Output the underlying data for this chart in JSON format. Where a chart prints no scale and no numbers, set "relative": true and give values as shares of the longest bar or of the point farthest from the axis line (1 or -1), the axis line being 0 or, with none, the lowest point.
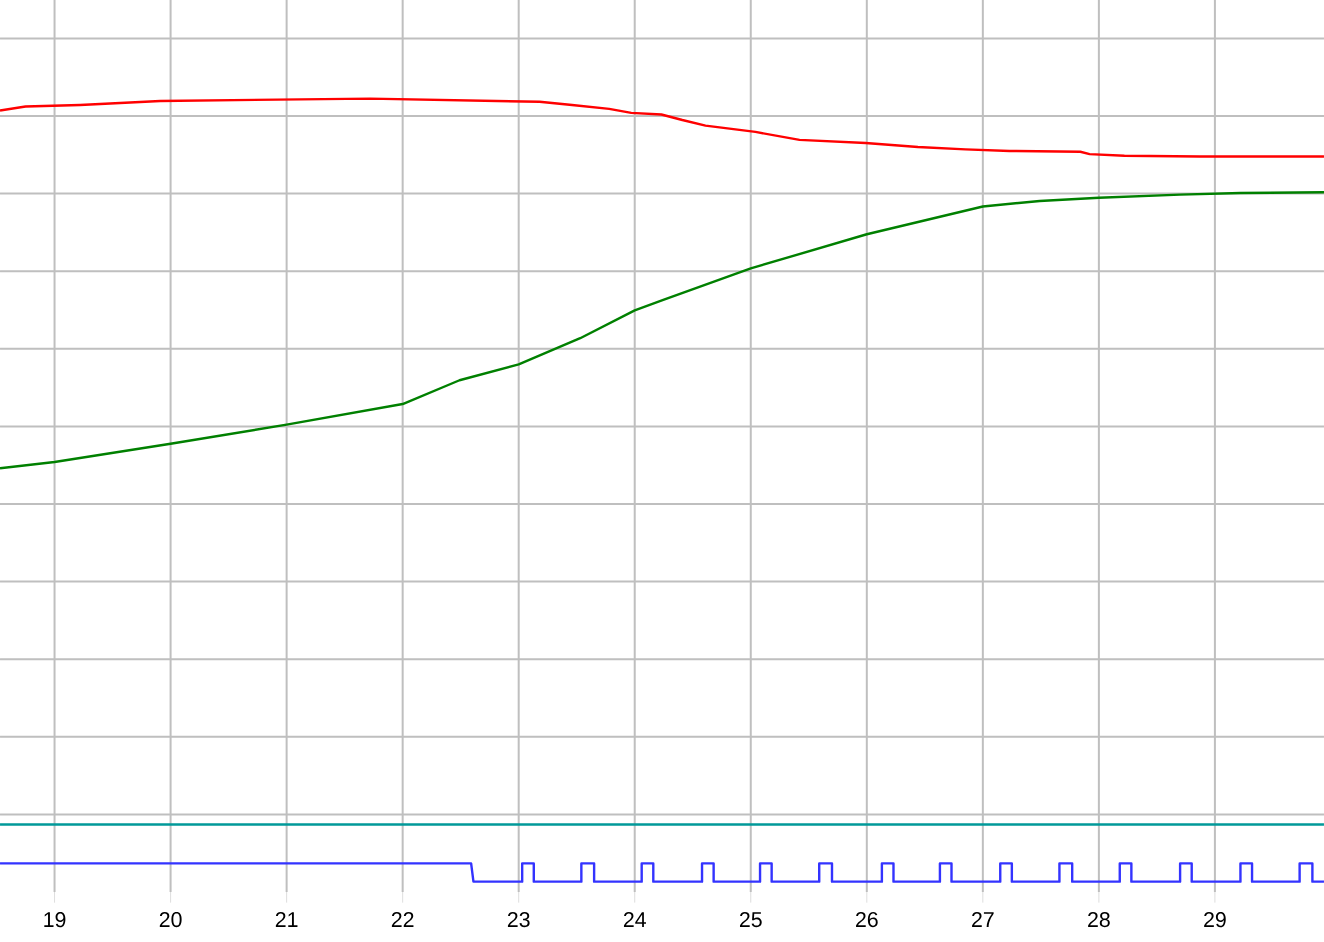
{
  "chart_data": {
    "type": "line",
    "relative": true,
    "grid": true,
    "xlim": [
      18.53,
      29.94
    ],
    "xticks": [
      19,
      20,
      21,
      22,
      23,
      24,
      25,
      26,
      27,
      28,
      29
    ],
    "series": [
      {
        "color": "#ff0000",
        "x": [
          18.53,
          18.75,
          19.22,
          19.91,
          21.72,
          23.18,
          23.46,
          23.78,
          23.97,
          24.23,
          24.41,
          24.61,
          25.04,
          25.42,
          25.99,
          26.44,
          26.85,
          27.23,
          27.84,
          27.92,
          28.22,
          28.87,
          29.94
        ],
        "values": [
          0.985,
          0.99,
          0.992,
          0.997,
          1.0,
          0.996,
          0.992,
          0.987,
          0.982,
          0.98,
          0.973,
          0.966,
          0.958,
          0.948,
          0.944,
          0.939,
          0.936,
          0.934,
          0.933,
          0.93,
          0.928,
          0.927,
          0.927
        ]
      },
      {
        "color": "#008000",
        "x": [
          18.53,
          19,
          20,
          21,
          22,
          22.49,
          23,
          23.53,
          24,
          24.24,
          25,
          26,
          27,
          27.49,
          28,
          28.7,
          29.22,
          29.94
        ],
        "values": [
          0.534,
          0.542,
          0.565,
          0.589,
          0.615,
          0.645,
          0.665,
          0.698,
          0.733,
          0.746,
          0.786,
          0.829,
          0.864,
          0.871,
          0.875,
          0.879,
          0.881,
          0.882
        ]
      },
      {
        "color": "#009999",
        "x": [
          18.53,
          29.94
        ],
        "values": [
          0.085,
          0.085
        ]
      },
      {
        "color": "#3333ff",
        "x": [
          18.53,
          22.59,
          22.61,
          23.03,
          23.03,
          23.13,
          23.13,
          23.54,
          23.54,
          23.65,
          23.65,
          24.06,
          24.06,
          24.16,
          24.16,
          24.58,
          24.58,
          24.68,
          24.68,
          25.08,
          25.08,
          25.18,
          25.18,
          25.59,
          25.59,
          25.7,
          25.7,
          26.13,
          26.13,
          26.23,
          26.23,
          26.63,
          26.63,
          26.73,
          26.73,
          27.15,
          27.15,
          27.25,
          27.25,
          27.66,
          27.66,
          27.77,
          27.77,
          28.18,
          28.18,
          28.28,
          28.28,
          28.7,
          28.7,
          28.8,
          28.8,
          29.22,
          29.22,
          29.32,
          29.32,
          29.73,
          29.73,
          29.84,
          29.84,
          29.94
        ],
        "values": [
          0.036,
          0.036,
          0.013,
          0.013,
          0.036,
          0.036,
          0.013,
          0.013,
          0.036,
          0.036,
          0.013,
          0.013,
          0.036,
          0.036,
          0.013,
          0.013,
          0.036,
          0.036,
          0.013,
          0.013,
          0.036,
          0.036,
          0.013,
          0.013,
          0.036,
          0.036,
          0.013,
          0.013,
          0.036,
          0.036,
          0.013,
          0.013,
          0.036,
          0.036,
          0.013,
          0.013,
          0.036,
          0.036,
          0.013,
          0.013,
          0.036,
          0.036,
          0.013,
          0.013,
          0.036,
          0.036,
          0.013,
          0.013,
          0.036,
          0.036,
          0.013,
          0.013,
          0.036,
          0.036,
          0.013,
          0.013,
          0.036,
          0.036,
          0.013,
          0.013
        ]
      }
    ]
  }
}
